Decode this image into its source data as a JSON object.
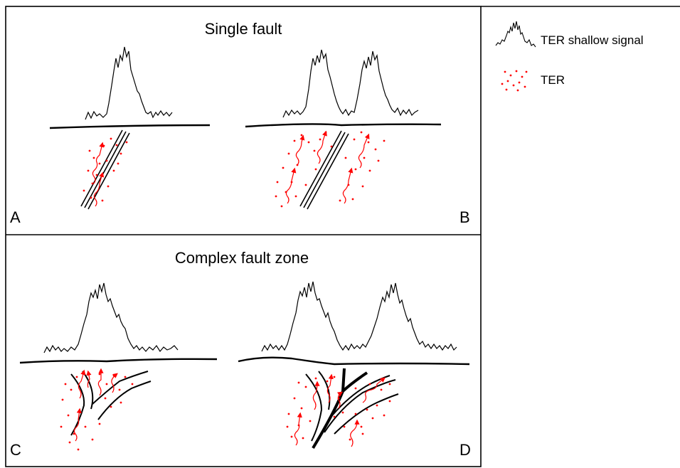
{
  "sections": {
    "top_title": "Single fault",
    "bottom_title": "Complex fault zone"
  },
  "panels": {
    "a": "A",
    "b": "B",
    "c": "C",
    "d": "D"
  },
  "legend": {
    "signal_label": "TER shallow signal",
    "ter_label": "TER"
  },
  "colors": {
    "ter": "#ff0000",
    "line": "#000000"
  }
}
